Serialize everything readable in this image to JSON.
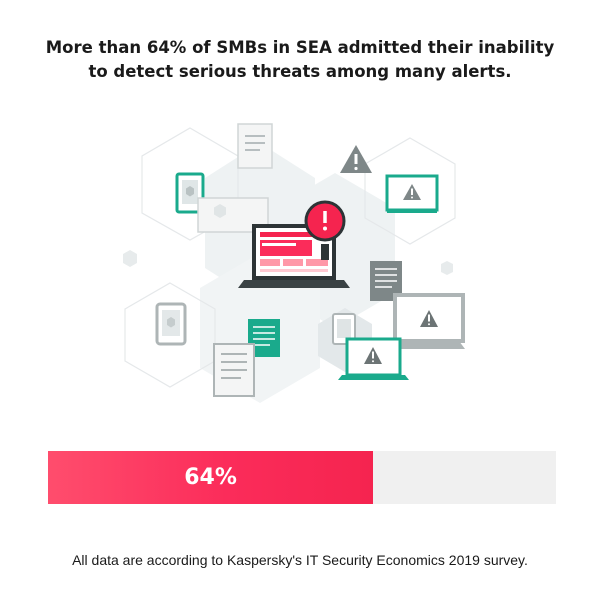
{
  "headline": {
    "line1": "More than 64% of SMBs in SEA admitted their inability",
    "line2": "to detect serious threats among many alerts."
  },
  "stat": {
    "value_percent": 64,
    "label": "64%"
  },
  "footnote": "All data are according to Kaspersky's IT Security Economics 2019 survey.",
  "illustration": {
    "icons": [
      "laptop-alert-icon",
      "magnifier-alert-icon",
      "warning-triangle-icon",
      "monitor-alert-icon",
      "tablet-icon",
      "phone-icon",
      "document-icon"
    ]
  },
  "colors": {
    "accent": "#f5244f",
    "accent_light": "#ff4d6d",
    "teal": "#1aaa8c",
    "gray": "#aeb5b6",
    "track": "#f0f0f0",
    "text": "#1a1a1a"
  }
}
